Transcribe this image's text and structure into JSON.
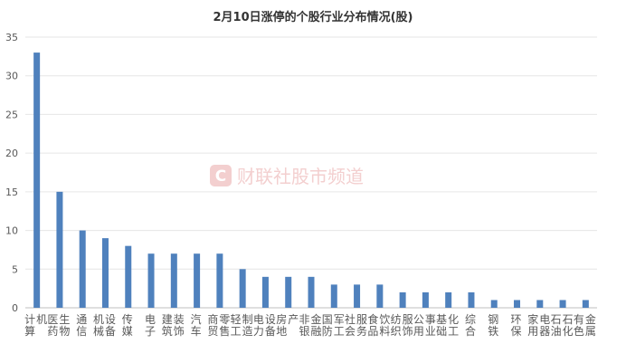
{
  "chart_data": {
    "type": "bar",
    "title": "2月10日涨停的个股行业分布情况(股)",
    "categories": [
      "计算机",
      "医药生物",
      "通信",
      "机械设备",
      "传媒",
      "电子",
      "建筑装饰",
      "汽车",
      "商贸零售",
      "轻工制造",
      "电力设备",
      "房地产",
      "非银金融",
      "国防军工",
      "社会服务",
      "食品饮料",
      "纺织服饰",
      "公用事业",
      "基础化工",
      "综合",
      "钢铁",
      "环保",
      "家用电器",
      "石油石化",
      "有色金属"
    ],
    "values": [
      33,
      15,
      10,
      9,
      8,
      7,
      7,
      7,
      7,
      5,
      4,
      4,
      4,
      3,
      3,
      3,
      2,
      2,
      2,
      2,
      1,
      1,
      1,
      1,
      1
    ],
    "ylim": [
      0,
      35
    ],
    "yticks": [
      0,
      5,
      10,
      15,
      20,
      25,
      30,
      35
    ],
    "grid": true,
    "bar_color": "#4f81bd",
    "watermark": "财联社股市频道"
  }
}
